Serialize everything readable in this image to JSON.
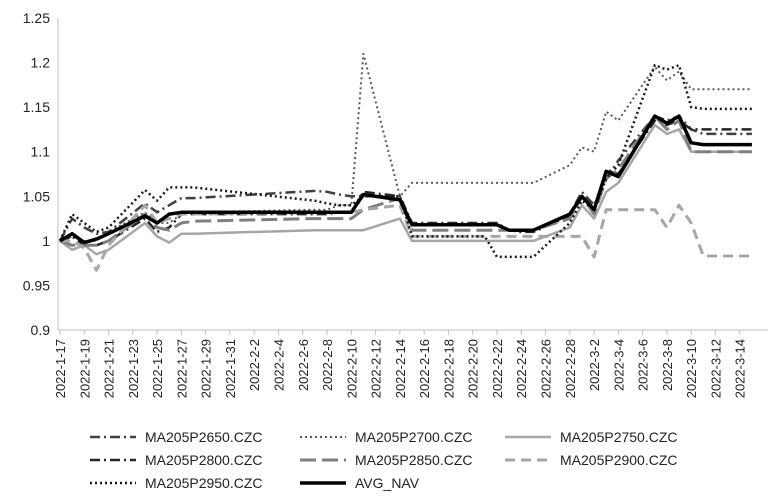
{
  "chart_data": {
    "type": "line",
    "title": "",
    "xlabel": "",
    "ylabel": "",
    "ylim": [
      0.9,
      1.25
    ],
    "yticks": [
      "0.9",
      "0.95",
      "1",
      "1.05",
      "1.1",
      "1.15",
      "1.2",
      "1.25"
    ],
    "grid": false,
    "legend_position": "bottom",
    "x": [
      "2022-1-17",
      "2022-1-18",
      "2022-1-19",
      "2022-1-20",
      "2022-1-21",
      "2022-1-24",
      "2022-1-25",
      "2022-1-26",
      "2022-1-27",
      "2022-1-28",
      "2022-2-7",
      "2022-2-8",
      "2022-2-9",
      "2022-2-10",
      "2022-2-11",
      "2022-2-14",
      "2022-2-15",
      "2022-2-16",
      "2022-2-17",
      "2022-2-18",
      "2022-2-21",
      "2022-2-22",
      "2022-2-23",
      "2022-2-24",
      "2022-2-25",
      "2022-2-28",
      "2022-3-1",
      "2022-3-2",
      "2022-3-3",
      "2022-3-4",
      "2022-3-7",
      "2022-3-8",
      "2022-3-9",
      "2022-3-10",
      "2022-3-11",
      "2022-3-14",
      "2022-3-15"
    ],
    "xtick_labels": [
      "2022-1-17",
      "2022-1-19",
      "2022-1-21",
      "2022-1-23",
      "2022-1-25",
      "2022-1-27",
      "2022-1-29",
      "2022-1-31",
      "2022-2-2",
      "2022-2-4",
      "2022-2-6",
      "2022-2-8",
      "2022-2-10",
      "2022-2-12",
      "2022-2-14",
      "2022-2-16",
      "2022-2-18",
      "2022-2-20",
      "2022-2-22",
      "2022-2-24",
      "2022-2-26",
      "2022-2-28",
      "2022-3-2",
      "2022-3-4",
      "2022-3-6",
      "2022-3-8",
      "2022-3-10",
      "2022-3-12",
      "2022-3-14"
    ],
    "series": [
      {
        "name": "MA205P2650.CZC",
        "color": "#404040",
        "width": 2.5,
        "dash": "10,4,2,4",
        "values": [
          1.0,
          1.025,
          1.015,
          1.008,
          1.01,
          1.042,
          1.032,
          1.04,
          1.048,
          1.048,
          1.056,
          1.055,
          1.052,
          1.05,
          1.05,
          1.05,
          1.018,
          1.018,
          1.018,
          1.018,
          1.018,
          1.018,
          1.012,
          1.012,
          1.012,
          1.03,
          1.055,
          1.04,
          1.07,
          1.09,
          1.14,
          1.135,
          1.14,
          1.125,
          1.12,
          1.12,
          1.12
        ]
      },
      {
        "name": "MA205P2700.CZC",
        "color": "#595959",
        "width": 2,
        "dash": "2,3",
        "values": [
          1.0,
          1.005,
          1.0,
          1.0,
          1.01,
          1.032,
          1.02,
          1.02,
          1.03,
          1.032,
          1.035,
          1.035,
          1.04,
          1.04,
          1.21,
          1.05,
          1.065,
          1.065,
          1.065,
          1.065,
          1.065,
          1.065,
          1.065,
          1.065,
          1.065,
          1.085,
          1.105,
          1.1,
          1.145,
          1.135,
          1.195,
          1.18,
          1.19,
          1.17,
          1.17,
          1.17,
          1.17
        ]
      },
      {
        "name": "MA205P2750.CZC",
        "color": "#a6a6a6",
        "width": 2.5,
        "dash": "",
        "values": [
          1.0,
          0.99,
          0.995,
          0.985,
          0.99,
          1.02,
          1.005,
          0.998,
          1.008,
          1.008,
          1.012,
          1.012,
          1.012,
          1.012,
          1.012,
          1.025,
          1.0,
          1.0,
          1.0,
          1.0,
          1.0,
          1.0,
          1.0,
          1.0,
          1.0,
          1.015,
          1.04,
          1.025,
          1.055,
          1.065,
          1.13,
          1.12,
          1.125,
          1.1,
          1.1,
          1.1,
          1.1
        ]
      },
      {
        "name": "MA205P2800.CZC",
        "color": "#262626",
        "width": 2.5,
        "dash": "10,4,2,4",
        "values": [
          1.0,
          1.005,
          0.995,
          0.995,
          1.0,
          1.025,
          1.01,
          1.015,
          1.03,
          1.03,
          1.03,
          1.03,
          1.032,
          1.032,
          1.055,
          1.05,
          1.02,
          1.02,
          1.02,
          1.02,
          1.02,
          1.02,
          1.012,
          1.01,
          1.01,
          1.028,
          1.05,
          1.035,
          1.08,
          1.075,
          1.135,
          1.13,
          1.135,
          1.125,
          1.125,
          1.125,
          1.125
        ]
      },
      {
        "name": "MA205P2850.CZC",
        "color": "#7f7f7f",
        "width": 3,
        "dash": "16,6",
        "values": [
          1.0,
          0.995,
          0.995,
          0.995,
          1.0,
          1.03,
          1.015,
          1.012,
          1.02,
          1.022,
          1.025,
          1.025,
          1.025,
          1.025,
          1.035,
          1.048,
          1.012,
          1.012,
          1.012,
          1.012,
          1.012,
          1.012,
          1.012,
          1.012,
          1.012,
          1.025,
          1.05,
          1.03,
          1.07,
          1.08,
          1.14,
          1.125,
          1.135,
          1.1,
          1.1,
          1.1,
          1.1
        ]
      },
      {
        "name": "MA205P2900.CZC",
        "color": "#a6a6a6",
        "width": 3,
        "dash": "10,6",
        "values": [
          1.0,
          1.0,
          0.992,
          0.967,
          0.995,
          1.04,
          1.02,
          1.025,
          1.03,
          1.03,
          1.032,
          1.032,
          1.032,
          1.032,
          1.035,
          1.04,
          1.005,
          1.005,
          1.005,
          1.005,
          1.005,
          1.005,
          1.005,
          1.005,
          1.005,
          1.005,
          1.005,
          0.982,
          1.035,
          1.035,
          1.035,
          1.015,
          1.04,
          1.02,
          0.983,
          0.983,
          0.983
        ]
      },
      {
        "name": "MA205P2950.CZC",
        "color": "#1a1a1a",
        "width": 2.5,
        "dash": "2,3",
        "values": [
          1.0,
          1.03,
          1.02,
          1.01,
          1.015,
          1.057,
          1.045,
          1.06,
          1.06,
          1.06,
          1.045,
          1.042,
          1.04,
          1.04,
          1.05,
          1.05,
          1.005,
          1.005,
          1.005,
          1.005,
          1.005,
          0.982,
          0.982,
          0.982,
          0.982,
          1.02,
          1.045,
          1.035,
          1.07,
          1.085,
          1.197,
          1.192,
          1.197,
          1.15,
          1.148,
          1.148,
          1.148
        ]
      },
      {
        "name": "AVG_NAV",
        "color": "#000000",
        "width": 3.5,
        "dash": "",
        "values": [
          1.0,
          1.008,
          0.998,
          1.002,
          1.008,
          1.028,
          1.02,
          1.03,
          1.032,
          1.032,
          1.032,
          1.032,
          1.032,
          1.032,
          1.052,
          1.046,
          1.018,
          1.018,
          1.018,
          1.018,
          1.018,
          1.018,
          1.012,
          1.012,
          1.012,
          1.03,
          1.05,
          1.035,
          1.078,
          1.072,
          1.14,
          1.132,
          1.14,
          1.11,
          1.108,
          1.108,
          1.108
        ]
      }
    ]
  }
}
